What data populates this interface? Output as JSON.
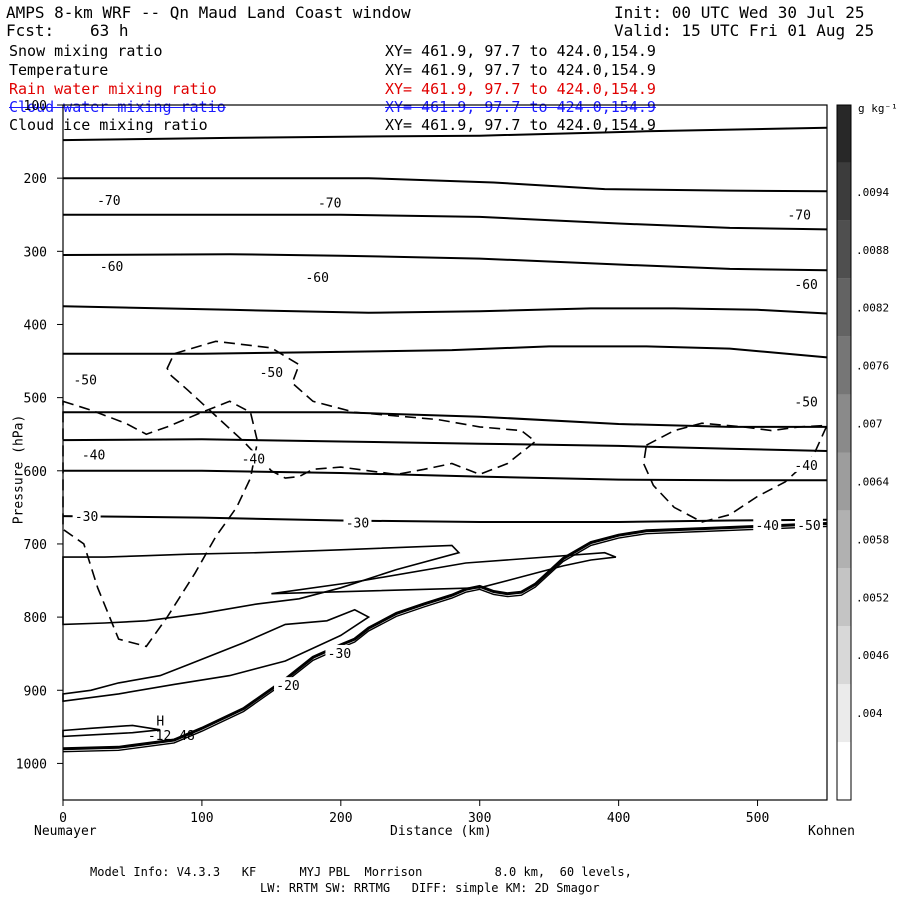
{
  "header": {
    "model_title": "AMPS 8-km WRF -- Qn Maud Land Coast window",
    "init": "Init: 00 UTC Wed 30 Jul 25",
    "fcst_label": "Fcst:",
    "fcst_value": "63 h",
    "valid": "Valid: 15 UTC Fri 01 Aug 25"
  },
  "fields": [
    {
      "name": "Snow mixing ratio",
      "xy": "XY= 461.9, 97.7 to 424.0,154.9",
      "color": "#000000"
    },
    {
      "name": "Temperature",
      "xy": "XY= 461.9, 97.7 to 424.0,154.9",
      "color": "#000000"
    },
    {
      "name": "Rain water mixing ratio",
      "xy": "XY= 461.9, 97.7 to 424.0,154.9",
      "color": "#e00000"
    },
    {
      "name": "Cloud water mixing ratio",
      "xy": "XY= 461.9, 97.7 to 424.0,154.9",
      "color": "#1a1aff"
    },
    {
      "name": "Cloud ice mixing ratio",
      "xy": "XY= 461.9, 97.7 to 424.0,154.9",
      "color": "#000000"
    }
  ],
  "footer": {
    "line1": "Model Info: V4.3.3   KF      MYJ PBL  Morrison          8.0 km,  60 levels,",
    "line2": "LW: RRTM SW: RRTMG   DIFF: simple KM: 2D Smagor"
  },
  "chart_data": {
    "type": "contour",
    "xlabel": "Distance (km)",
    "ylabel": "Pressure (hPa)",
    "x_start_label": "Neumayer",
    "x_end_label": "Kohnen",
    "xlim": [
      0,
      550
    ],
    "ylim": [
      1050,
      100
    ],
    "x_ticks": [
      0,
      100,
      200,
      300,
      400,
      500
    ],
    "y_ticks": [
      100,
      200,
      300,
      400,
      500,
      600,
      700,
      800,
      900,
      1000
    ],
    "colorbar": {
      "unit": "g kg⁻¹",
      "ticks": [
        ".004",
        ".0046",
        ".0052",
        ".0058",
        ".0064",
        ".007",
        ".0076",
        ".0082",
        ".0088",
        ".0094"
      ]
    },
    "annotations": [
      {
        "text": "H",
        "x": 70,
        "y": 948
      },
      {
        "text": "-12.48",
        "x": 78,
        "y": 968
      }
    ],
    "temperature_labels": [
      {
        "text": "-70",
        "x": 33,
        "y": 230
      },
      {
        "text": "-70",
        "x": 192,
        "y": 233
      },
      {
        "text": "-70",
        "x": 530,
        "y": 250
      },
      {
        "text": "-60",
        "x": 35,
        "y": 320
      },
      {
        "text": "-60",
        "x": 183,
        "y": 335
      },
      {
        "text": "-60",
        "x": 535,
        "y": 345
      },
      {
        "text": "-50",
        "x": 16,
        "y": 475
      },
      {
        "text": "-50",
        "x": 150,
        "y": 465
      },
      {
        "text": "-50",
        "x": 535,
        "y": 505
      },
      {
        "text": "-40",
        "x": 22,
        "y": 578
      },
      {
        "text": "-40",
        "x": 137,
        "y": 583
      },
      {
        "text": "-40",
        "x": 535,
        "y": 592
      },
      {
        "text": "-30",
        "x": 17,
        "y": 662
      },
      {
        "text": "-30",
        "x": 212,
        "y": 671
      },
      {
        "text": "-40",
        "x": 507,
        "y": 674
      },
      {
        "text": "-50",
        "x": 537,
        "y": 674
      },
      {
        "text": "-30",
        "x": 199,
        "y": 849
      },
      {
        "text": "-20",
        "x": 162,
        "y": 893
      }
    ],
    "temperature_isotherms": [
      {
        "x": [
          0,
          120,
          220,
          300,
          420,
          550
        ],
        "y": [
          148,
          145,
          143,
          142,
          136,
          131
        ]
      },
      {
        "x": [
          0,
          120,
          220,
          310,
          390,
          480,
          550
        ],
        "y": [
          200,
          200,
          200,
          206,
          215,
          217,
          218
        ]
      },
      {
        "x": [
          0,
          120,
          200,
          300,
          400,
          480,
          550
        ],
        "y": [
          250,
          250,
          250,
          253,
          262,
          268,
          270
        ]
      },
      {
        "x": [
          0,
          120,
          200,
          300,
          400,
          480,
          550
        ],
        "y": [
          305,
          304,
          306,
          310,
          318,
          324,
          326
        ]
      },
      {
        "x": [
          0,
          120,
          220,
          300,
          380,
          440,
          500,
          550
        ],
        "y": [
          375,
          380,
          384,
          382,
          378,
          378,
          380,
          385
        ]
      },
      {
        "x": [
          0,
          100,
          180,
          280,
          350,
          420,
          480,
          550
        ],
        "y": [
          440,
          440,
          438,
          435,
          430,
          430,
          433,
          445
        ]
      },
      {
        "x": [
          0,
          100,
          200,
          300,
          400,
          480,
          550
        ],
        "y": [
          520,
          520,
          520,
          526,
          536,
          540,
          540
        ]
      },
      {
        "x": [
          0,
          100,
          200,
          300,
          400,
          480,
          550
        ],
        "y": [
          558,
          557,
          560,
          563,
          566,
          570,
          573
        ]
      },
      {
        "x": [
          0,
          100,
          200,
          300,
          400,
          480,
          550
        ],
        "y": [
          600,
          600,
          603,
          608,
          612,
          613,
          613
        ]
      },
      {
        "x": [
          0,
          100,
          200,
          300,
          400,
          480,
          550
        ],
        "y": [
          662,
          664,
          668,
          670,
          670,
          668,
          667
        ]
      }
    ],
    "terrain_profile": {
      "x": [
        0,
        40,
        80,
        100,
        130,
        160,
        180,
        200,
        210,
        220,
        240,
        260,
        280,
        290,
        300,
        310,
        320,
        330,
        340,
        360,
        380,
        400,
        420,
        460,
        500,
        550
      ],
      "y": [
        980,
        978,
        968,
        952,
        925,
        885,
        855,
        838,
        830,
        815,
        795,
        782,
        770,
        762,
        758,
        765,
        768,
        766,
        755,
        720,
        698,
        688,
        682,
        679,
        676,
        672
      ]
    },
    "cloud_ice_contours": [
      {
        "x": [
          0,
          30,
          60,
          90,
          140,
          170,
          200,
          280,
          285,
          240,
          200,
          170,
          140,
          100,
          60,
          30,
          0
        ],
        "y": [
          718,
          718,
          716,
          714,
          712,
          710,
          708,
          702,
          712,
          735,
          760,
          775,
          782,
          795,
          805,
          808,
          810
        ]
      },
      {
        "x": [
          0,
          40,
          80,
          120,
          160,
          200,
          220,
          210,
          190,
          160,
          130,
          110,
          90,
          70,
          40,
          20,
          0
        ],
        "y": [
          915,
          905,
          892,
          880,
          860,
          825,
          800,
          790,
          805,
          810,
          835,
          850,
          865,
          880,
          890,
          900,
          905
        ]
      },
      {
        "x": [
          0,
          20,
          50,
          70,
          50,
          30,
          0
        ],
        "y": [
          955,
          952,
          948,
          954,
          958,
          960,
          963
        ]
      },
      {
        "x": [
          150,
          210,
          290,
          390,
          398,
          380,
          360,
          330,
          300
        ],
        "y": [
          768,
          752,
          726,
          712,
          718,
          722,
          730,
          745,
          760
        ]
      }
    ],
    "snow_dashed_contours": [
      {
        "x": [
          0,
          20,
          45,
          60,
          75,
          100,
          120,
          135,
          140,
          135,
          125,
          110,
          95,
          75,
          60,
          40,
          25,
          15,
          0
        ],
        "y": [
          505,
          517,
          535,
          550,
          540,
          520,
          505,
          520,
          560,
          610,
          650,
          690,
          740,
          800,
          840,
          830,
          760,
          700,
          680
        ]
      },
      {
        "x": [
          75,
          80,
          110,
          150,
          170,
          165,
          180,
          210,
          240,
          270,
          300,
          330,
          340,
          320,
          300,
          280,
          260,
          240,
          220,
          200,
          180,
          170,
          160,
          150,
          130,
          110,
          90,
          78
        ],
        "y": [
          460,
          440,
          423,
          432,
          455,
          480,
          505,
          520,
          525,
          530,
          540,
          545,
          560,
          590,
          605,
          590,
          598,
          605,
          600,
          595,
          598,
          608,
          610,
          600,
          560,
          525,
          490,
          470
        ]
      },
      {
        "x": [
          420,
          440,
          460,
          490,
          510,
          530,
          550,
          540,
          520,
          500,
          480,
          460,
          440,
          425,
          418
        ],
        "y": [
          565,
          545,
          535,
          540,
          545,
          540,
          538,
          580,
          615,
          635,
          660,
          670,
          650,
          620,
          590
        ]
      }
    ]
  }
}
